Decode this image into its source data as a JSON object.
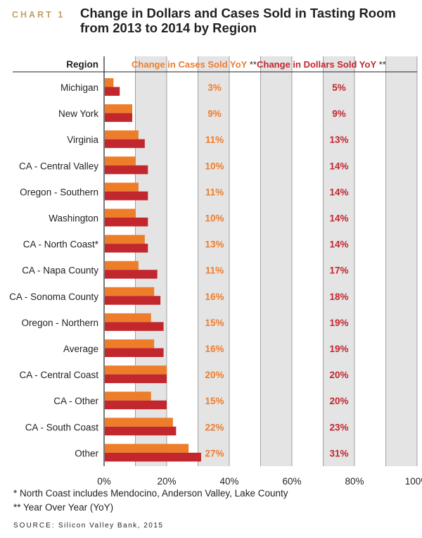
{
  "header": {
    "chart_number": "CHART 1",
    "title_line1": "Change in Dollars and Cases Sold in Tasting Room",
    "title_line2": "from 2013 to 2014 by Region"
  },
  "footnotes": {
    "note1": "* North Coast includes Mendocino, Anderson Valley, Lake County",
    "note2": "** Year Over Year (YoY)",
    "source_label": "SOURCE:",
    "source_text": "Silicon Valley Bank, 2015"
  },
  "colors": {
    "cases": "#ee7d2a",
    "dollars": "#c1272d",
    "band": "#e4e4e5",
    "gridline": "#8c8c8c"
  },
  "chart_data": {
    "type": "bar",
    "orientation": "horizontal",
    "category_header": "Region",
    "categories": [
      "Michigan",
      "New York",
      "Virginia",
      "CA - Central Valley",
      "Oregon - Southern",
      "Washington",
      "CA - North Coast*",
      "CA - Napa County",
      "CA - Sonoma County",
      "Oregon - Northern",
      "Average",
      "CA - Central Coast",
      "CA - Other",
      "CA - South Coast",
      "Other"
    ],
    "series": [
      {
        "name": "Change in Cases Sold YoY",
        "name_suffix": " **",
        "color": "#ee7d2a",
        "values": [
          3,
          9,
          11,
          10,
          11,
          10,
          13,
          11,
          16,
          15,
          16,
          20,
          15,
          22,
          27
        ],
        "labels": [
          "3%",
          "9%",
          "11%",
          "10%",
          "11%",
          "10%",
          "13%",
          "11%",
          "16%",
          "15%",
          "16%",
          "20%",
          "15%",
          "22%",
          "27%"
        ]
      },
      {
        "name": "Change in Dollars Sold YoY",
        "name_suffix": " **",
        "color": "#c1272d",
        "values": [
          5,
          9,
          13,
          14,
          14,
          14,
          14,
          17,
          18,
          19,
          19,
          20,
          20,
          23,
          31
        ],
        "labels": [
          "5%",
          "9%",
          "13%",
          "14%",
          "14%",
          "14%",
          "14%",
          "17%",
          "18%",
          "19%",
          "19%",
          "20%",
          "20%",
          "23%",
          "31%"
        ]
      }
    ],
    "x_ticks": [
      "0%",
      "20%",
      "40%",
      "60%",
      "80%",
      "100%"
    ],
    "xlim": [
      0,
      100
    ],
    "grid": true,
    "legend": "top, as column headers"
  }
}
